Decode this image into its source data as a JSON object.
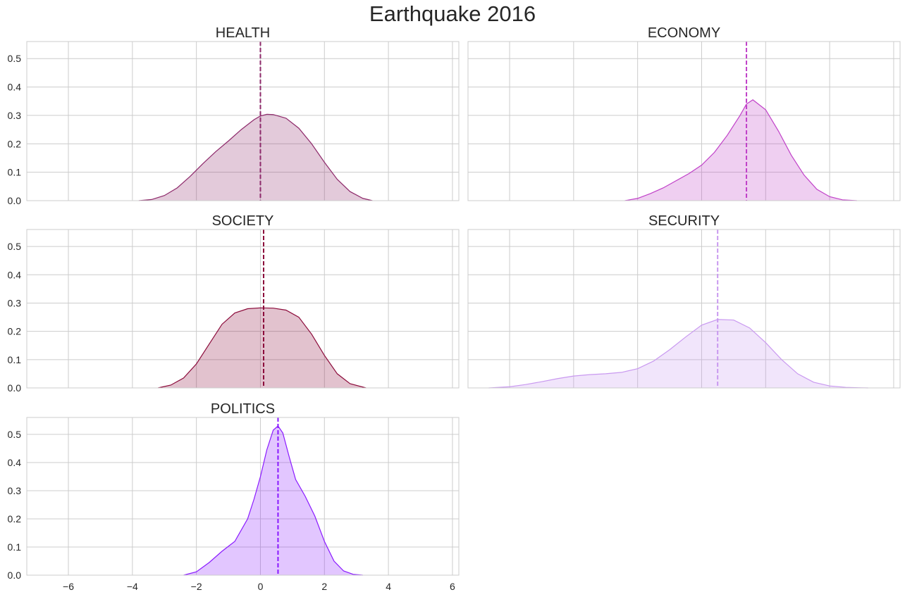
{
  "title": "Earthquake 2016",
  "chart_data": [
    {
      "type": "area",
      "title": "HEALTH",
      "color": "#8e2a6b",
      "xlim": [
        -7.3,
        6.2
      ],
      "ylim": [
        0,
        0.56
      ],
      "xticks": [
        -6,
        -4,
        -2,
        0,
        2,
        4,
        6
      ],
      "xtick_labels": [
        "−6",
        "−4",
        "−2",
        "0",
        "2",
        "4",
        "6"
      ],
      "yticks": [
        0.0,
        0.1,
        0.2,
        0.3,
        0.4,
        0.5
      ],
      "ytick_labels": [
        "0.0",
        "0.1",
        "0.2",
        "0.3",
        "0.4",
        "0.5"
      ],
      "mean": 0.0,
      "x": [
        -3.8,
        -3.4,
        -3.0,
        -2.6,
        -2.2,
        -1.8,
        -1.4,
        -1.0,
        -0.6,
        -0.2,
        0.0,
        0.2,
        0.4,
        0.8,
        1.2,
        1.6,
        2.0,
        2.4,
        2.8,
        3.2,
        3.5
      ],
      "y": [
        0.0,
        0.004,
        0.018,
        0.045,
        0.085,
        0.13,
        0.172,
        0.21,
        0.25,
        0.285,
        0.298,
        0.304,
        0.303,
        0.29,
        0.255,
        0.2,
        0.135,
        0.075,
        0.032,
        0.008,
        0.0
      ]
    },
    {
      "type": "area",
      "title": "ECONOMY",
      "color": "#c040c8",
      "xlim": [
        -7.3,
        6.2
      ],
      "ylim": [
        0,
        0.56
      ],
      "xticks": [
        -6,
        -4,
        -2,
        0,
        2,
        4,
        6
      ],
      "xtick_labels": [
        "−6",
        "−4",
        "−2",
        "0",
        "2",
        "4",
        "6"
      ],
      "yticks": [
        0.0,
        0.1,
        0.2,
        0.3,
        0.4,
        0.5
      ],
      "ytick_labels": [
        "0.0",
        "0.1",
        "0.2",
        "0.3",
        "0.4",
        "0.5"
      ],
      "mean": 1.4,
      "x": [
        -2.4,
        -2.0,
        -1.6,
        -1.2,
        -0.8,
        -0.4,
        0.0,
        0.4,
        0.8,
        1.2,
        1.4,
        1.6,
        2.0,
        2.4,
        2.8,
        3.2,
        3.6,
        4.0,
        4.4,
        4.85
      ],
      "y": [
        0.0,
        0.008,
        0.025,
        0.045,
        0.07,
        0.095,
        0.125,
        0.17,
        0.23,
        0.3,
        0.34,
        0.355,
        0.32,
        0.245,
        0.16,
        0.09,
        0.04,
        0.014,
        0.003,
        0.0
      ]
    },
    {
      "type": "area",
      "title": "SOCIETY",
      "color": "#8b0a3a",
      "xlim": [
        -7.3,
        6.2
      ],
      "ylim": [
        0,
        0.56
      ],
      "xticks": [
        -6,
        -4,
        -2,
        0,
        2,
        4,
        6
      ],
      "xtick_labels": [
        "−6",
        "−4",
        "−2",
        "0",
        "2",
        "4",
        "6"
      ],
      "yticks": [
        0.0,
        0.1,
        0.2,
        0.3,
        0.4,
        0.5
      ],
      "ytick_labels": [
        "0.0",
        "0.1",
        "0.2",
        "0.3",
        "0.4",
        "0.5"
      ],
      "mean": 0.1,
      "x": [
        -3.2,
        -2.8,
        -2.4,
        -2.0,
        -1.6,
        -1.2,
        -0.8,
        -0.4,
        0.0,
        0.4,
        0.8,
        1.2,
        1.6,
        2.0,
        2.4,
        2.8,
        3.3
      ],
      "y": [
        0.0,
        0.01,
        0.035,
        0.085,
        0.155,
        0.225,
        0.265,
        0.28,
        0.283,
        0.282,
        0.275,
        0.25,
        0.19,
        0.115,
        0.05,
        0.015,
        0.0
      ]
    },
    {
      "type": "area",
      "title": "SECURITY",
      "color": "#c999f0",
      "xlim": [
        -7.3,
        6.2
      ],
      "ylim": [
        0,
        0.56
      ],
      "xticks": [
        -6,
        -4,
        -2,
        0,
        2,
        4,
        6
      ],
      "xtick_labels": [
        "−6",
        "−4",
        "−2",
        "0",
        "2",
        "4",
        "6"
      ],
      "yticks": [
        0.0,
        0.1,
        0.2,
        0.3,
        0.4,
        0.5
      ],
      "ytick_labels": [
        "0.0",
        "0.1",
        "0.2",
        "0.3",
        "0.4",
        "0.5"
      ],
      "mean": 0.5,
      "x": [
        -6.65,
        -6.0,
        -5.5,
        -5.0,
        -4.5,
        -4.0,
        -3.5,
        -3.0,
        -2.5,
        -2.0,
        -1.5,
        -1.0,
        -0.5,
        0.0,
        0.5,
        1.0,
        1.5,
        2.0,
        2.5,
        3.0,
        3.5,
        4.0,
        4.5,
        5.0,
        5.2
      ],
      "y": [
        0.0,
        0.004,
        0.012,
        0.022,
        0.033,
        0.042,
        0.047,
        0.05,
        0.055,
        0.068,
        0.095,
        0.135,
        0.18,
        0.222,
        0.242,
        0.24,
        0.212,
        0.16,
        0.1,
        0.05,
        0.02,
        0.007,
        0.002,
        0.0005,
        0.0
      ]
    },
    {
      "type": "area",
      "title": "POLITICS",
      "color": "#8a1aff",
      "xlim": [
        -7.3,
        6.2
      ],
      "ylim": [
        0,
        0.56
      ],
      "xticks": [
        -6,
        -4,
        -2,
        0,
        2,
        4,
        6
      ],
      "xtick_labels": [
        "−6",
        "−4",
        "−2",
        "0",
        "2",
        "4",
        "6"
      ],
      "yticks": [
        0.0,
        0.1,
        0.2,
        0.3,
        0.4,
        0.5
      ],
      "ytick_labels": [
        "0.0",
        "0.1",
        "0.2",
        "0.3",
        "0.4",
        "0.5"
      ],
      "mean": 0.55,
      "x": [
        -2.4,
        -2.0,
        -1.6,
        -1.2,
        -0.8,
        -0.4,
        -0.2,
        0.0,
        0.2,
        0.4,
        0.55,
        0.7,
        0.9,
        1.1,
        1.4,
        1.7,
        2.0,
        2.3,
        2.6,
        2.9,
        3.2
      ],
      "y": [
        0.0,
        0.012,
        0.045,
        0.085,
        0.12,
        0.2,
        0.27,
        0.35,
        0.445,
        0.515,
        0.53,
        0.505,
        0.42,
        0.34,
        0.28,
        0.21,
        0.12,
        0.05,
        0.015,
        0.003,
        0.0
      ]
    }
  ]
}
